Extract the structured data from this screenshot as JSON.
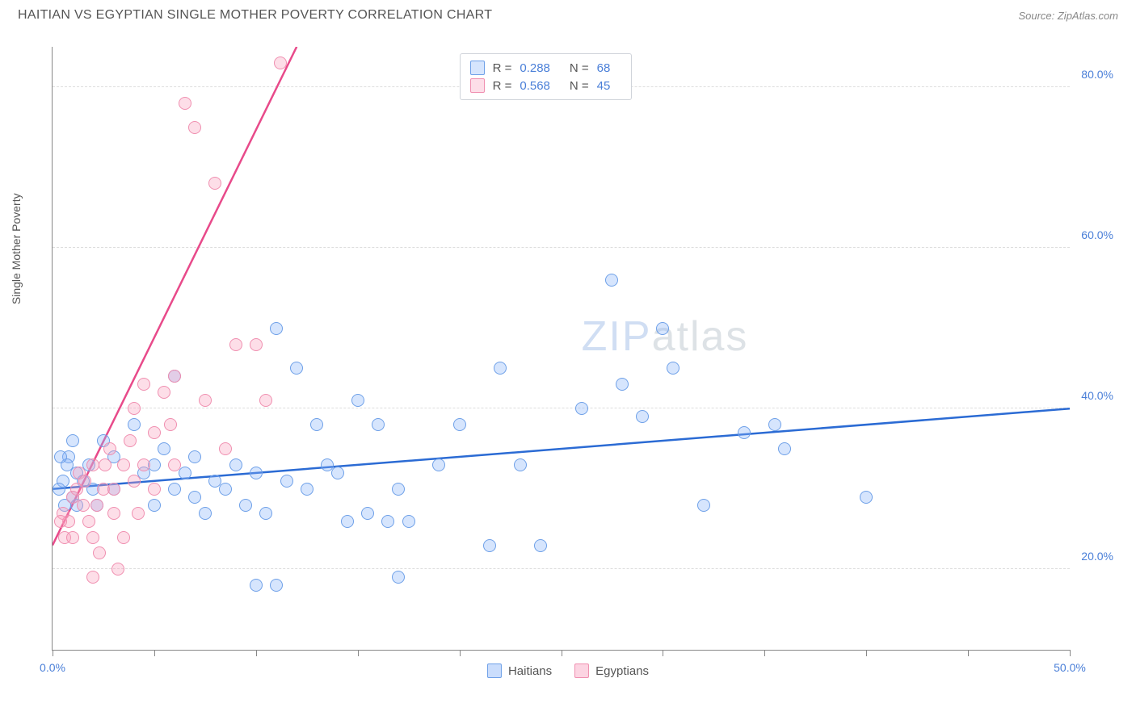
{
  "title": "HAITIAN VS EGYPTIAN SINGLE MOTHER POVERTY CORRELATION CHART",
  "source": "Source: ZipAtlas.com",
  "ylabel": "Single Mother Poverty",
  "watermark_a": "ZIP",
  "watermark_b": "atlas",
  "chart": {
    "type": "scatter",
    "xlim": [
      0,
      50
    ],
    "ylim": [
      10,
      85
    ],
    "xtick_values": [
      0,
      5,
      10,
      15,
      20,
      25,
      30,
      35,
      40,
      45,
      50
    ],
    "xtick_labels": {
      "0": "0.0%",
      "50": "50.0%"
    },
    "ytick_values": [
      20,
      40,
      60,
      80
    ],
    "ytick_labels": {
      "20": "20.0%",
      "40": "40.0%",
      "60": "60.0%",
      "80": "80.0%"
    },
    "grid_color": "#dddddd",
    "background_color": "#ffffff",
    "marker_radius": 8,
    "marker_border_width": 1.5,
    "series": [
      {
        "name": "Haitians",
        "fill": "rgba(138,180,248,0.35)",
        "stroke": "#6ea0e8",
        "trend_color": "#2b6bd4",
        "trend_width": 2.5,
        "trend_dash": "",
        "R_label": "R =",
        "R": "0.288",
        "N_label": "N =",
        "N": "68",
        "trend": {
          "x1": 0,
          "y1": 30,
          "x2": 50,
          "y2": 40,
          "extend_dash_to": null
        },
        "points": [
          [
            0.5,
            31
          ],
          [
            0.8,
            34
          ],
          [
            0.6,
            28
          ],
          [
            1.0,
            36
          ],
          [
            1.2,
            32
          ],
          [
            0.3,
            30
          ],
          [
            0.7,
            33
          ],
          [
            1.0,
            29
          ],
          [
            0.4,
            34
          ],
          [
            1.5,
            31
          ],
          [
            1.2,
            28
          ],
          [
            1.8,
            33
          ],
          [
            2.0,
            30
          ],
          [
            2.5,
            36
          ],
          [
            2.2,
            28
          ],
          [
            3.0,
            34
          ],
          [
            3.0,
            30
          ],
          [
            4.0,
            38
          ],
          [
            4.5,
            32
          ],
          [
            5.0,
            33
          ],
          [
            5.0,
            28
          ],
          [
            5.5,
            35
          ],
          [
            6.0,
            30
          ],
          [
            6.0,
            44
          ],
          [
            6.5,
            32
          ],
          [
            7.0,
            29
          ],
          [
            7.0,
            34
          ],
          [
            7.5,
            27
          ],
          [
            8.0,
            31
          ],
          [
            8.5,
            30
          ],
          [
            9.0,
            33
          ],
          [
            9.5,
            28
          ],
          [
            10.0,
            32
          ],
          [
            10.5,
            27
          ],
          [
            10.0,
            18
          ],
          [
            11.0,
            18
          ],
          [
            11.0,
            50
          ],
          [
            11.5,
            31
          ],
          [
            12.0,
            45
          ],
          [
            12.5,
            30
          ],
          [
            13.5,
            33
          ],
          [
            13.0,
            38
          ],
          [
            14.0,
            32
          ],
          [
            14.5,
            26
          ],
          [
            15.0,
            41
          ],
          [
            15.5,
            27
          ],
          [
            16.0,
            38
          ],
          [
            16.5,
            26
          ],
          [
            17.0,
            30
          ],
          [
            17.5,
            26
          ],
          [
            17.0,
            19
          ],
          [
            20.0,
            38
          ],
          [
            21.5,
            23
          ],
          [
            22.0,
            45
          ],
          [
            23.0,
            33
          ],
          [
            24.0,
            23
          ],
          [
            26.0,
            40
          ],
          [
            27.5,
            56
          ],
          [
            28.0,
            43
          ],
          [
            29.0,
            39
          ],
          [
            30.5,
            45
          ],
          [
            30.0,
            50
          ],
          [
            32.0,
            28
          ],
          [
            35.5,
            38
          ],
          [
            36.0,
            35
          ],
          [
            40.0,
            29
          ],
          [
            34.0,
            37
          ],
          [
            19.0,
            33
          ]
        ]
      },
      {
        "name": "Egyptians",
        "fill": "rgba(248,160,190,0.35)",
        "stroke": "#f08fb0",
        "trend_color": "#e84a8a",
        "trend_width": 2.5,
        "trend_dash": "6 5",
        "R_label": "R =",
        "R": "0.568",
        "N_label": "N =",
        "N": "45",
        "trend": {
          "x1": 0,
          "y1": 23,
          "x2": 12,
          "y2": 85,
          "extend_dash_to": [
            13.3,
            92
          ]
        },
        "points": [
          [
            0.5,
            27
          ],
          [
            0.8,
            26
          ],
          [
            0.6,
            24
          ],
          [
            1.0,
            29
          ],
          [
            1.2,
            30
          ],
          [
            0.4,
            26
          ],
          [
            1.5,
            28
          ],
          [
            1.3,
            32
          ],
          [
            1.0,
            24
          ],
          [
            1.8,
            26
          ],
          [
            1.6,
            31
          ],
          [
            2.0,
            33
          ],
          [
            2.0,
            24
          ],
          [
            2.2,
            28
          ],
          [
            2.5,
            30
          ],
          [
            2.6,
            33
          ],
          [
            2.8,
            35
          ],
          [
            2.0,
            19
          ],
          [
            2.3,
            22
          ],
          [
            3.0,
            27
          ],
          [
            3.0,
            30
          ],
          [
            3.2,
            20
          ],
          [
            3.5,
            24
          ],
          [
            3.5,
            33
          ],
          [
            3.8,
            36
          ],
          [
            4.0,
            40
          ],
          [
            4.0,
            31
          ],
          [
            4.2,
            27
          ],
          [
            4.5,
            43
          ],
          [
            4.5,
            33
          ],
          [
            5.0,
            37
          ],
          [
            5.0,
            30
          ],
          [
            5.5,
            42
          ],
          [
            5.8,
            38
          ],
          [
            6.0,
            33
          ],
          [
            6.5,
            78
          ],
          [
            7.0,
            75
          ],
          [
            6.0,
            44
          ],
          [
            7.5,
            41
          ],
          [
            8.0,
            68
          ],
          [
            9.0,
            48
          ],
          [
            10.0,
            48
          ],
          [
            10.5,
            41
          ],
          [
            11.2,
            83
          ],
          [
            8.5,
            35
          ]
        ]
      }
    ]
  },
  "legend_bottom": [
    {
      "label": "Haitians",
      "fill": "rgba(138,180,248,0.45)",
      "stroke": "#6ea0e8"
    },
    {
      "label": "Egyptians",
      "fill": "rgba(248,160,190,0.45)",
      "stroke": "#f08fb0"
    }
  ]
}
